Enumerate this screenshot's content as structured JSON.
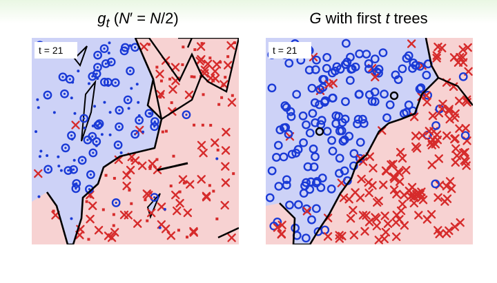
{
  "panels": [
    {
      "title_html": "<i>g</i><sub><i>t</i></sub> (<i>N</i>′ = <i>N</i>/2)",
      "title_text": "g_t (N′ = N/2)",
      "t_label": "t = 21"
    },
    {
      "title_html": "<i>G</i> with first <i>t</i> trees",
      "title_text": "G with first t trees",
      "t_label": "t = 21"
    }
  ],
  "colors": {
    "blue_region": "#cdd2f7",
    "red_region": "#f7d2d2",
    "blue_mark": "#1a3ad6",
    "red_mark": "#d62b2b",
    "boundary": "#000000"
  }
}
